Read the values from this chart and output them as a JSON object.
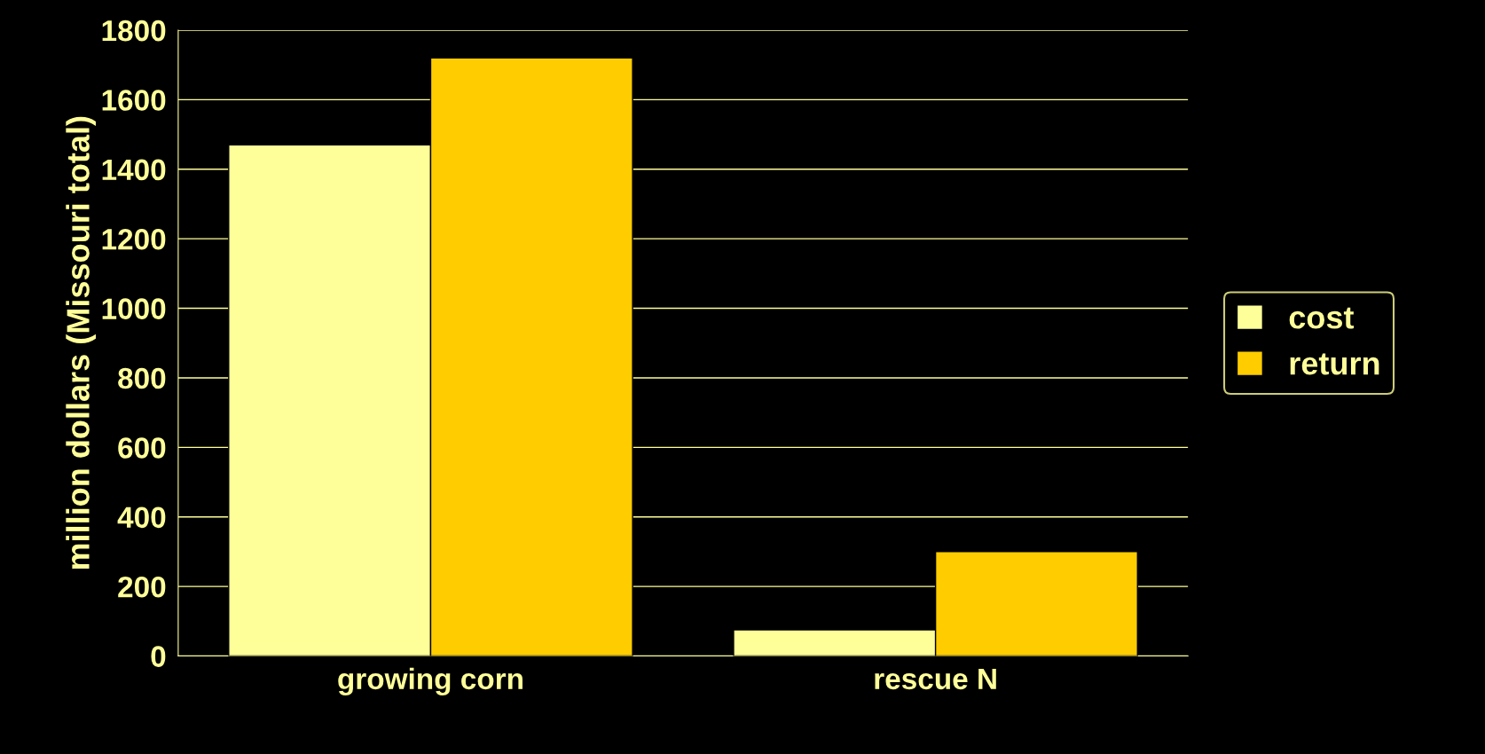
{
  "chart_data": {
    "type": "bar",
    "ylabel": "million dollars (Missouri total)",
    "categories": [
      "growing corn",
      "rescue N"
    ],
    "series": [
      {
        "name": "cost",
        "color": "#ffff99",
        "values": [
          1470,
          75
        ]
      },
      {
        "name": "return",
        "color": "#ffcc00",
        "values": [
          1720,
          300
        ]
      }
    ],
    "ylim": [
      0,
      1800
    ],
    "yticks": [
      0,
      200,
      400,
      600,
      800,
      1000,
      1200,
      1400,
      1600,
      1800
    ],
    "grid": "y",
    "legend": "right"
  }
}
